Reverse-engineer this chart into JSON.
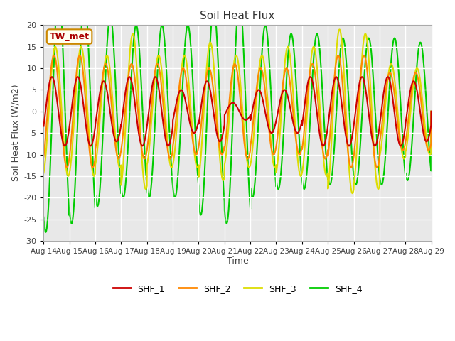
{
  "title": "Soil Heat Flux",
  "xlabel": "Time",
  "ylabel": "Soil Heat Flux (W/m2)",
  "ylim": [
    -30,
    20
  ],
  "annotation": "TW_met",
  "fig_facecolor": "#ffffff",
  "plot_bg": "#e8e8e8",
  "line_colors": [
    "#cc0000",
    "#ff8800",
    "#dddd00",
    "#00cc00"
  ],
  "line_labels": [
    "SHF_1",
    "SHF_2",
    "SHF_3",
    "SHF_4"
  ],
  "x_tick_labels": [
    "Aug 14",
    "Aug 15",
    "Aug 16",
    "Aug 17",
    "Aug 18",
    "Aug 19",
    "Aug 20",
    "Aug 21",
    "Aug 22",
    "Aug 23",
    "Aug 24",
    "Aug 25",
    "Aug 26",
    "Aug 27",
    "Aug 28",
    "Aug 29"
  ],
  "n_days": 15,
  "n_points": 3000,
  "amplitudes_shf1": [
    8,
    8,
    7,
    8,
    8,
    5,
    7,
    2,
    5,
    5,
    8,
    8,
    8,
    8,
    7
  ],
  "amplitudes_shf2": [
    13,
    13,
    11,
    11,
    11,
    10,
    10,
    11,
    10,
    10,
    11,
    13,
    13,
    9,
    9
  ],
  "amplitudes_shf3": [
    15,
    15,
    13,
    18,
    13,
    13,
    16,
    13,
    13,
    15,
    15,
    19,
    18,
    11,
    10
  ],
  "amplitudes_shf4": [
    28,
    26,
    22,
    20,
    20,
    20,
    24,
    26,
    20,
    18,
    18,
    17,
    17,
    17,
    16
  ],
  "phase_shf1": 0.18,
  "phase_shf2": 0.1,
  "phase_shf3": 0.05,
  "phase_shf4": -0.08,
  "grid_color": "#ffffff",
  "spine_color": "#aaaaaa"
}
